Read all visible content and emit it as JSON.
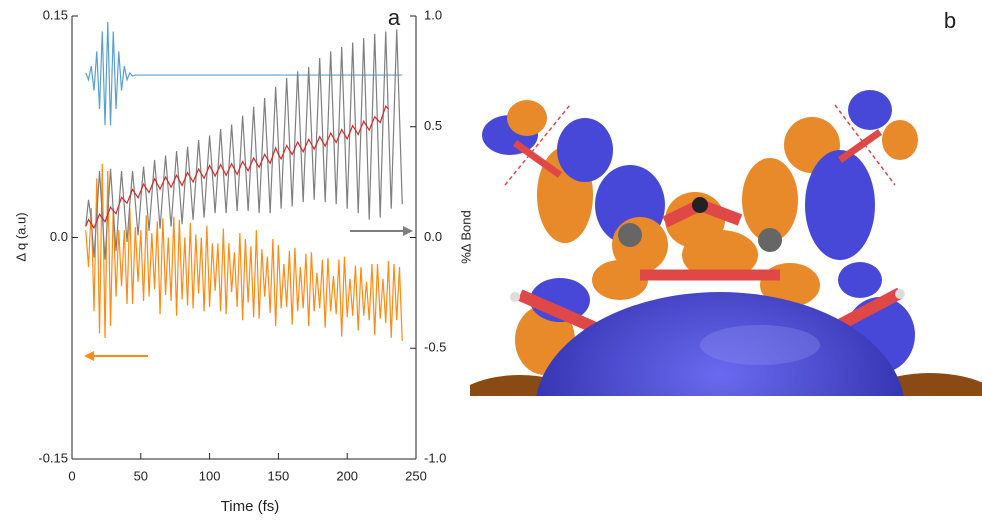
{
  "chart_data": {
    "type": "line",
    "panel_label": "a",
    "xlabel": "Time (fs)",
    "ylabel": "Δ q (a.u)",
    "y2label": "%Δ  Bond",
    "xlim": [
      0,
      250
    ],
    "xticks": [
      0,
      50,
      100,
      150,
      200,
      250
    ],
    "ylim": [
      -0.15,
      0.15
    ],
    "yticks": [
      -0.15,
      {
        "value": 0,
        "label": "0.0"
      },
      0.15
    ],
    "y2lim": [
      -1,
      1
    ],
    "y2ticks": [
      {
        "value": -1,
        "label": "-1.0"
      },
      -0.5,
      {
        "value": 0,
        "label": "0.0"
      },
      0.5,
      {
        "value": 1,
        "label": "1.0"
      }
    ],
    "x": [
      10,
      12,
      14,
      16,
      18,
      20,
      22,
      24,
      26,
      28,
      30,
      32,
      34,
      36,
      38,
      40,
      42,
      44,
      46,
      48,
      50,
      52,
      54,
      56,
      58,
      60,
      62,
      64,
      66,
      68,
      70,
      72,
      74,
      76,
      78,
      80,
      82,
      84,
      86,
      88,
      90,
      92,
      94,
      96,
      98,
      100,
      102,
      104,
      106,
      108,
      110,
      112,
      114,
      116,
      118,
      120,
      122,
      124,
      126,
      128,
      130,
      132,
      134,
      136,
      138,
      140,
      142,
      144,
      146,
      148,
      150,
      152,
      154,
      156,
      158,
      160,
      162,
      164,
      166,
      168,
      170,
      172,
      174,
      176,
      178,
      180,
      182,
      184,
      186,
      188,
      190,
      192,
      194,
      196,
      198,
      200,
      202,
      204,
      206,
      208,
      210,
      212,
      214,
      216,
      218,
      220,
      222,
      224,
      226,
      228,
      230,
      232,
      234,
      236,
      238,
      240
    ],
    "series": [
      {
        "color": "#5a9fd4",
        "values": [
          0.1115,
          0.1068,
          0.116,
          0.0995,
          0.126,
          0.087,
          0.1395,
          0.076,
          0.146,
          0.076,
          0.1395,
          0.087,
          0.126,
          0.0995,
          0.116,
          0.1068,
          0.1115,
          0.1093,
          0.11,
          0.11,
          0.11,
          0.11,
          0.11,
          0.11,
          0.11,
          0.11,
          0.11,
          0.11,
          0.11,
          0.11,
          0.11,
          0.11,
          0.11,
          0.11,
          0.11,
          0.11,
          0.11,
          0.11,
          0.11,
          0.11,
          0.11,
          0.11,
          0.11,
          0.11,
          0.11,
          0.11,
          0.11,
          0.11,
          0.11,
          0.11,
          0.11,
          0.11,
          0.11,
          0.11,
          0.11,
          0.11,
          0.11,
          0.11,
          0.11,
          0.11,
          0.11,
          0.11,
          0.11,
          0.11,
          0.11,
          0.11,
          0.11,
          0.11,
          0.11,
          0.11,
          0.11,
          0.11,
          0.11,
          0.11,
          0.11,
          0.11,
          0.11,
          0.11,
          0.11,
          0.11,
          0.11,
          0.11,
          0.11,
          0.11,
          0.11,
          0.11,
          0.11,
          0.11,
          0.11,
          0.11,
          0.11,
          0.11,
          0.11,
          0.11,
          0.11,
          0.11,
          0.11,
          0.11,
          0.11,
          0.11,
          0.11,
          0.11,
          0.11,
          0.11,
          0.11,
          0.11,
          0.11,
          0.11,
          0.11,
          0.11,
          0.11,
          0.11,
          0.11,
          0.11,
          0.11,
          0.11
        ]
      },
      {
        "color": "#ff8a14",
        "values": [
          0.005,
          -0.02,
          0.02,
          -0.05,
          0.04,
          -0.065,
          0.05,
          -0.068,
          0.045,
          -0.06,
          0.02,
          -0.04,
          0.005,
          -0.033,
          0.005,
          -0.045,
          0.02,
          -0.045,
          0.007,
          -0.03,
          0.005,
          -0.043,
          0.015,
          -0.04,
          0.003,
          -0.035,
          0.011,
          -0.052,
          0.013,
          -0.039,
          0,
          -0.043,
          0.014,
          -0.053,
          0.012,
          -0.042,
          0,
          -0.046,
          0.01,
          -0.048,
          0.002,
          -0.038,
          0,
          -0.05,
          0.008,
          -0.047,
          -0.004,
          -0.036,
          -0.004,
          -0.05,
          0.006,
          -0.052,
          -0.004,
          -0.037,
          -0.01,
          -0.047,
          0.003,
          -0.056,
          -0.001,
          -0.044,
          -0.006,
          -0.054,
          0.005,
          -0.055,
          -0.008,
          -0.04,
          -0.013,
          -0.051,
          -0.001,
          -0.06,
          -0.005,
          -0.048,
          -0.018,
          -0.047,
          -0.009,
          -0.059,
          -0.007,
          -0.05,
          -0.02,
          -0.048,
          -0.011,
          -0.06,
          -0.01,
          -0.05,
          -0.024,
          -0.048,
          -0.015,
          -0.061,
          -0.014,
          -0.05,
          -0.026,
          -0.052,
          -0.015,
          -0.067,
          -0.013,
          -0.054,
          -0.028,
          -0.053,
          -0.019,
          -0.063,
          -0.02,
          -0.053,
          -0.03,
          -0.056,
          -0.018,
          -0.066,
          -0.018,
          -0.055,
          -0.028,
          -0.058,
          -0.016,
          -0.068,
          -0.018,
          -0.056,
          -0.02,
          -0.07
        ]
      },
      {
        "color": "#7f7f7f",
        "axis": "y2",
        "values": [
          0.05,
          0.17,
          0.08,
          -0.09,
          0.1,
          0.3,
          0.1,
          -0.1,
          0.11,
          0.31,
          0.12,
          -0.06,
          0.13,
          0.3,
          0.14,
          -0.02,
          0.15,
          0.3,
          0.16,
          0.01,
          0.17,
          0.32,
          0.18,
          0.03,
          0.19,
          0.35,
          0.2,
          0.04,
          0.21,
          0.37,
          0.21,
          0.05,
          0.22,
          0.39,
          0.23,
          0.06,
          0.24,
          0.41,
          0.25,
          0.08,
          0.26,
          0.44,
          0.27,
          0.09,
          0.28,
          0.46,
          0.29,
          0.11,
          0.3,
          0.49,
          0.3,
          0.11,
          0.31,
          0.51,
          0.32,
          0.12,
          0.33,
          0.55,
          0.34,
          0.12,
          0.35,
          0.59,
          0.36,
          0.11,
          0.37,
          0.63,
          0.38,
          0.11,
          0.4,
          0.68,
          0.42,
          0.13,
          0.43,
          0.72,
          0.44,
          0.14,
          0.45,
          0.75,
          0.46,
          0.16,
          0.47,
          0.77,
          0.48,
          0.17,
          0.49,
          0.81,
          0.49,
          0.16,
          0.5,
          0.84,
          0.5,
          0.15,
          0.5,
          0.86,
          0.5,
          0.13,
          0.5,
          0.88,
          0.5,
          0.11,
          0.5,
          0.9,
          0.5,
          0.08,
          0.5,
          0.92,
          0.51,
          0.09,
          0.52,
          0.93,
          0.53,
          0.13,
          0.54,
          0.94,
          0.55,
          0.15
        ]
      },
      {
        "color": "#d42a2a",
        "axis": "y2",
        "values": [
          0.05,
          0.081,
          0.062,
          0.043,
          0.074,
          0.105,
          0.088,
          0.071,
          0.104,
          0.137,
          0.12,
          0.107,
          0.144,
          0.181,
          0.168,
          0.155,
          0.186,
          0.217,
          0.198,
          0.179,
          0.21,
          0.241,
          0.222,
          0.203,
          0.234,
          0.265,
          0.242,
          0.219,
          0.246,
          0.273,
          0.25,
          0.227,
          0.254,
          0.281,
          0.258,
          0.235,
          0.264,
          0.293,
          0.272,
          0.251,
          0.28,
          0.309,
          0.288,
          0.267,
          0.296,
          0.325,
          0.301,
          0.277,
          0.303,
          0.329,
          0.305,
          0.281,
          0.307,
          0.333,
          0.309,
          0.285,
          0.314,
          0.343,
          0.322,
          0.301,
          0.33,
          0.359,
          0.338,
          0.317,
          0.346,
          0.375,
          0.355,
          0.335,
          0.37,
          0.405,
          0.375,
          0.355,
          0.385,
          0.415,
          0.395,
          0.375,
          0.403,
          0.431,
          0.409,
          0.387,
          0.415,
          0.443,
          0.421,
          0.399,
          0.427,
          0.455,
          0.434,
          0.413,
          0.442,
          0.471,
          0.45,
          0.429,
          0.458,
          0.487,
          0.466,
          0.445,
          0.475,
          0.505,
          0.485,
          0.465,
          0.495,
          0.525,
          0.505,
          0.485,
          0.515,
          0.545,
          0.532,
          0.519,
          0.556,
          0.593,
          0.58,
          null,
          null,
          null,
          null,
          null
        ]
      }
    ]
  },
  "image_panel": {
    "label": "b"
  }
}
